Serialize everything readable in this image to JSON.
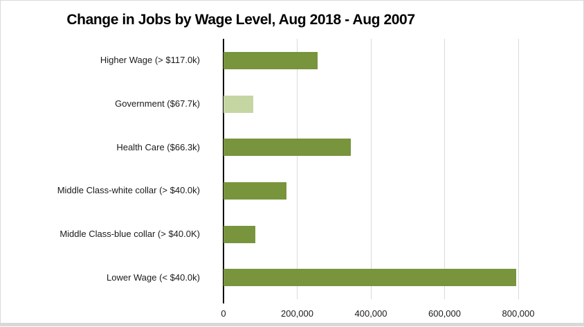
{
  "window": {
    "background": "#ffffff",
    "frame_border_color": "#d9d9d9",
    "bottom_strip_color": "#d8d8d8"
  },
  "chart_data": {
    "type": "bar",
    "orientation": "horizontal",
    "title": "Change in Jobs by Wage Level, Aug 2018 - Aug 2007",
    "categories": [
      "Higher Wage (> $117.0k)",
      "Government ($67.7k)",
      "Health Care ($66.3k)",
      "Middle Class-white collar (> $40.0k)",
      "Middle Class-blue collar (> $40.0K)",
      "Lower Wage (< $40.0k)"
    ],
    "values": [
      255000,
      80000,
      345000,
      170000,
      87000,
      795000
    ],
    "bar_colors": [
      "#78943c",
      "#c5d6a2",
      "#78943c",
      "#78943c",
      "#78943c",
      "#78943c"
    ],
    "x_ticks": [
      {
        "value": 0,
        "label": "0"
      },
      {
        "value": 200000,
        "label": "200,000"
      },
      {
        "value": 400000,
        "label": "400,000"
      },
      {
        "value": 600000,
        "label": "600,000"
      },
      {
        "value": 800000,
        "label": "800,000"
      }
    ],
    "xlim": [
      0,
      945000
    ],
    "xlabel": "",
    "ylabel": "",
    "grid": "vertical",
    "legend": "none",
    "colors": {
      "bar_dark": "#78943c",
      "bar_light": "#c5d6a2",
      "gridline": "#d9d9d9",
      "axis_line": "#000000",
      "text": "#1a1a1a"
    }
  }
}
